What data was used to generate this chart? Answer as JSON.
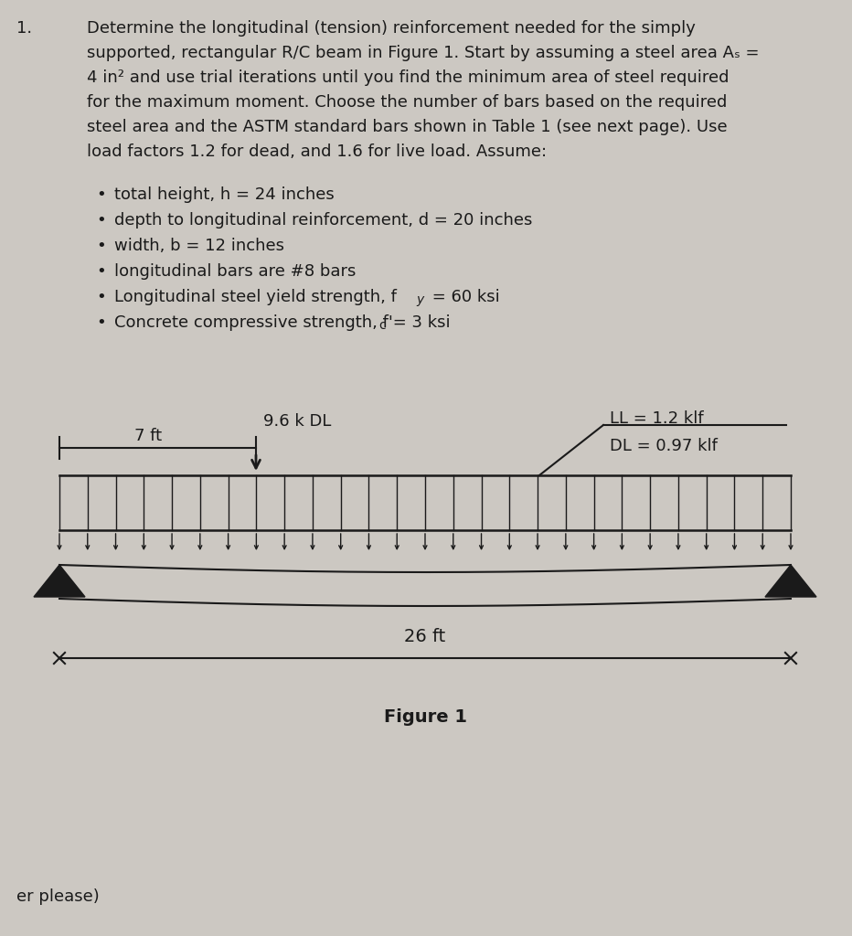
{
  "bg_color": "#ccc8c2",
  "text_color": "#1a1a1a",
  "bullet_items": [
    "total height, h = 24 inches",
    "depth to longitudinal reinforcement, d = 20 inches",
    "width, b = 12 inches",
    "longitudinal bars are #8 bars",
    "Longitudinal steel yield strength, fy = 60 ksi",
    "Concrete compressive strength, fc = 3 ksi"
  ],
  "fig_label": "Figure 1",
  "load_label_point": "9.6 k DL",
  "dist_label": "7 ft",
  "ll_label": "LL = 1.2 klf",
  "dl_label": "DL = 0.97 klf",
  "span_label": "26 ft",
  "footer_text": "er please)"
}
